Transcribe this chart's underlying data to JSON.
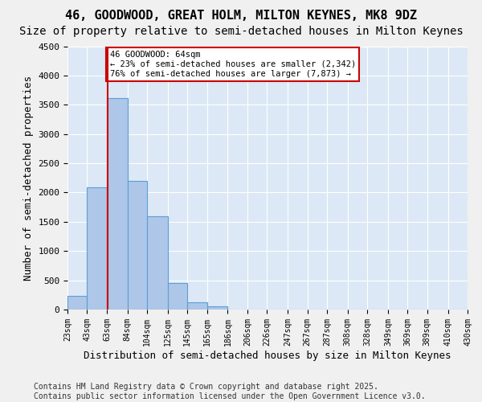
{
  "title1": "46, GOODWOOD, GREAT HOLM, MILTON KEYNES, MK8 9DZ",
  "title2": "Size of property relative to semi-detached houses in Milton Keynes",
  "xlabel": "Distribution of semi-detached houses by size in Milton Keynes",
  "ylabel": "Number of semi-detached properties",
  "footer": "Contains HM Land Registry data © Crown copyright and database right 2025.\nContains public sector information licensed under the Open Government Licence v3.0.",
  "bin_edges": [
    23,
    43,
    63,
    84,
    104,
    125,
    145,
    165,
    186,
    206,
    226,
    247,
    267,
    287,
    308,
    328,
    349,
    369,
    389,
    410,
    430
  ],
  "bin_labels": [
    "23sqm",
    "43sqm",
    "63sqm",
    "84sqm",
    "104sqm",
    "125sqm",
    "145sqm",
    "165sqm",
    "186sqm",
    "206sqm",
    "226sqm",
    "247sqm",
    "267sqm",
    "287sqm",
    "308sqm",
    "328sqm",
    "349sqm",
    "369sqm",
    "389sqm",
    "410sqm",
    "430sqm"
  ],
  "bar_values": [
    230,
    2090,
    3620,
    2200,
    1590,
    450,
    120,
    50,
    0,
    0,
    0,
    0,
    0,
    0,
    0,
    0,
    0,
    0,
    0,
    0
  ],
  "bar_color": "#aec6e8",
  "bar_edge_color": "#5a9fd4",
  "annotation_text": "46 GOODWOOD: 64sqm\n← 23% of semi-detached houses are smaller (2,342)\n76% of semi-detached houses are larger (7,873) →",
  "annotation_box_color": "#ffffff",
  "annotation_box_edge_color": "#cc0000",
  "vline_color": "#cc0000",
  "ylim": [
    0,
    4500
  ],
  "yticks": [
    0,
    500,
    1000,
    1500,
    2000,
    2500,
    3000,
    3500,
    4000,
    4500
  ],
  "bg_color": "#dce8f5",
  "grid_color": "#ffffff",
  "title1_fontsize": 11,
  "title2_fontsize": 10,
  "xlabel_fontsize": 9,
  "ylabel_fontsize": 9,
  "footer_fontsize": 7
}
